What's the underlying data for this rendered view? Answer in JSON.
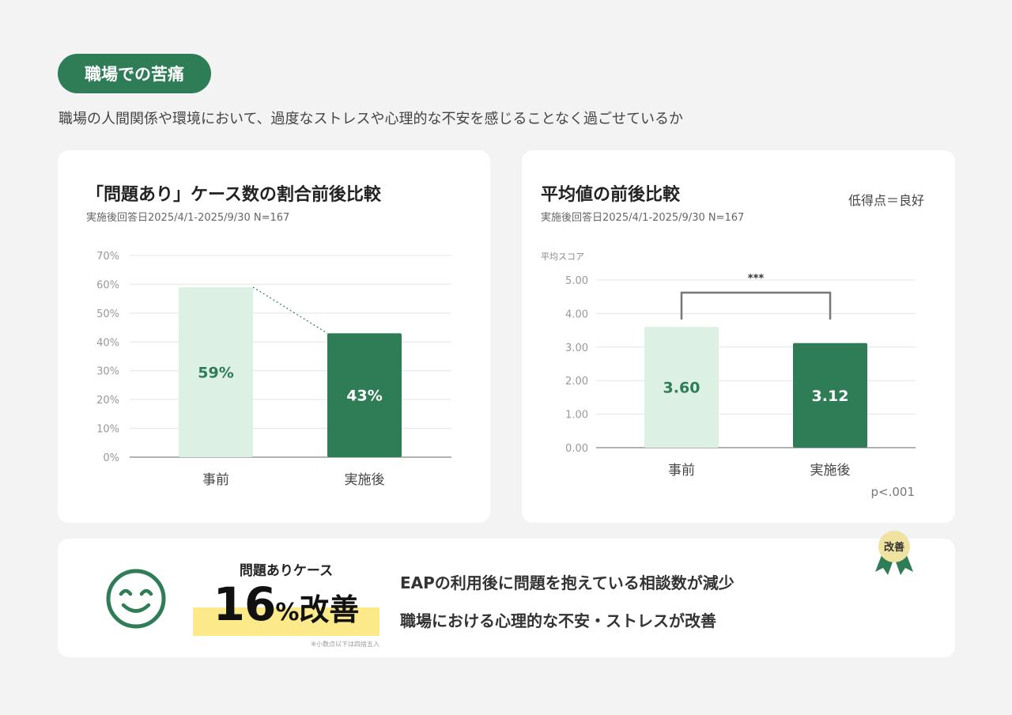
{
  "section_label": "職場での苦痛",
  "subtitle": "職場の人間関係や環境において、過度なストレスや心理的な不安を感じることなく過ごせているか",
  "colors": {
    "accent": "#2e7d57",
    "light": "#dcf0e4",
    "highlight": "#fbe98a",
    "badge": "#f0e2a0"
  },
  "left_card": {
    "title": "「問題あり」ケース数の割合前後比較",
    "meta": "実施後回答日2025/4/1-2025/9/30 N=167"
  },
  "right_card": {
    "title": "平均値の前後比較",
    "meta": "実施後回答日2025/4/1-2025/9/30 N=167",
    "note": "低得点＝良好"
  },
  "chart_data": [
    {
      "type": "bar",
      "title": "「問題あり」ケース数の割合前後比較",
      "categories": [
        "事前",
        "実施後"
      ],
      "values": [
        59,
        43
      ],
      "data_labels": [
        "59%",
        "43%"
      ],
      "y_ticks": [
        "0%",
        "10%",
        "20%",
        "30%",
        "40%",
        "50%",
        "60%",
        "70%"
      ],
      "ylim": [
        0,
        70
      ],
      "grid": true,
      "connector": "dotted"
    },
    {
      "type": "bar",
      "title": "平均値の前後比較",
      "categories": [
        "事前",
        "実施後"
      ],
      "values": [
        3.6,
        3.12
      ],
      "data_labels": [
        "3.60",
        "3.12"
      ],
      "ylabel": "平均スコア",
      "y_ticks": [
        "0.00",
        "1.00",
        "2.00",
        "3.00",
        "4.00",
        "5.00"
      ],
      "ylim": [
        0,
        5
      ],
      "grid": true,
      "significance": "***",
      "p_value": "p<.001"
    }
  ],
  "summary": {
    "case_label": "問題ありケース",
    "improvement_value": "16",
    "improvement_unit": "%",
    "improvement_word": "改善",
    "footnote": "※小数点以下は四捨五入",
    "lines": [
      "EAPの利用後に問題を抱えている相談数が減少",
      "職場における心理的な不安・ストレスが改善"
    ],
    "badge": "改善"
  }
}
